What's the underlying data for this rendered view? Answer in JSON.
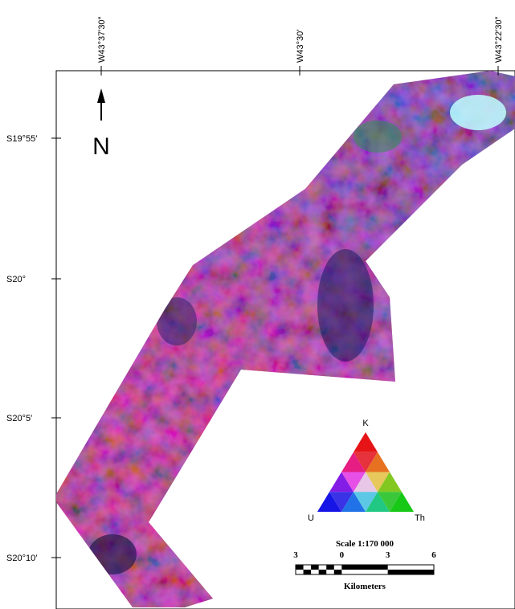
{
  "map": {
    "north": "N",
    "graticule": {
      "top": [
        "W43°37′30″",
        "W43°30′",
        "W43°22′30″"
      ],
      "left": [
        "S19°55′",
        "S20°",
        "S20°5′",
        "S20°10′"
      ]
    },
    "legend": {
      "top": "K",
      "left": "U",
      "right": "Th"
    },
    "scale": {
      "title": "Scale 1:170 000",
      "ticks": [
        "3",
        "0",
        "3",
        "6"
      ],
      "unit": "Kilometers"
    }
  }
}
